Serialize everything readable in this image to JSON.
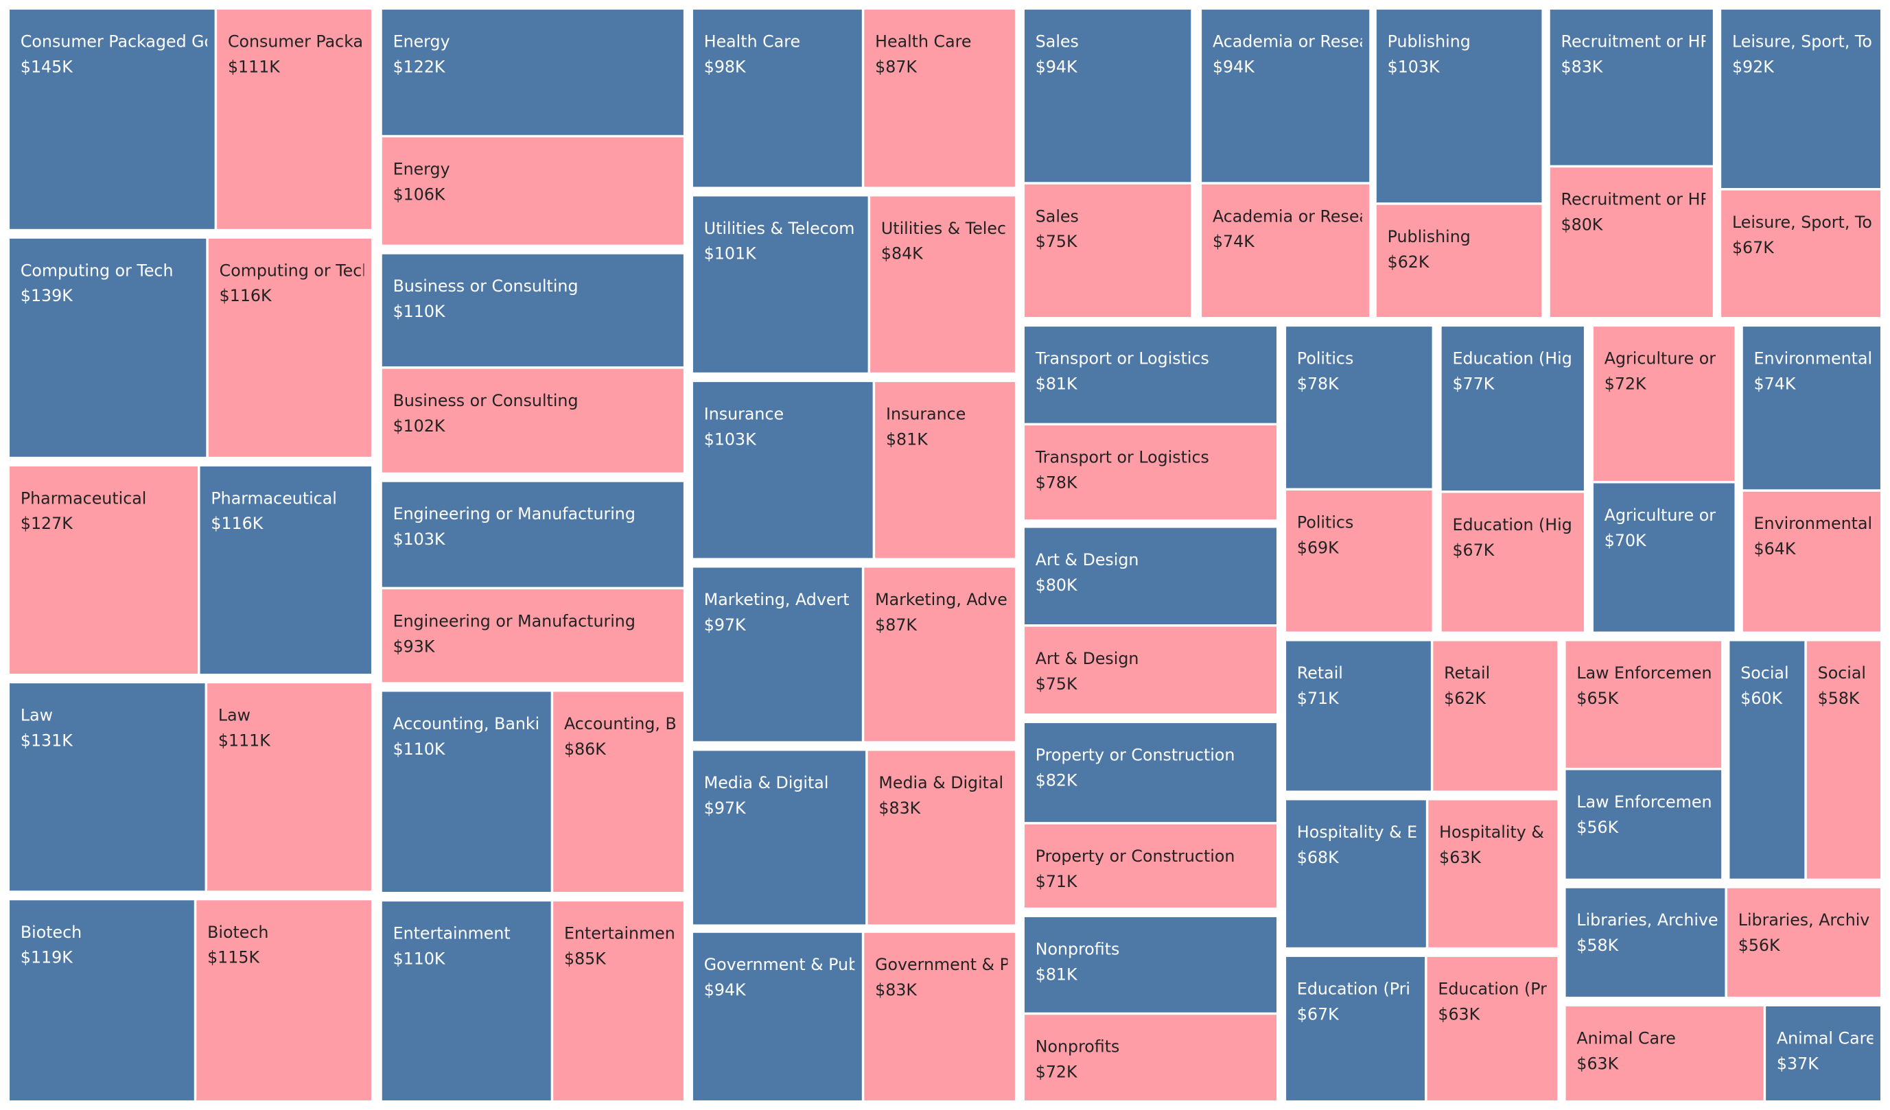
{
  "chart_data": {
    "type": "treemap",
    "colors": {
      "blue": "#4e79a7",
      "pink": "#ff9da7"
    },
    "tiles": [
      {
        "label": "Consumer Packaged Go",
        "value": "$145K",
        "color": "blue"
      },
      {
        "label": "Consumer Packa",
        "value": "$111K",
        "color": "pink"
      },
      {
        "label": "Computing or Tech",
        "value": "$139K",
        "color": "blue"
      },
      {
        "label": "Computing or Tech",
        "value": "$116K",
        "color": "pink"
      },
      {
        "label": "Pharmaceutical",
        "value": "$127K",
        "color": "pink"
      },
      {
        "label": "Pharmaceutical",
        "value": "$116K",
        "color": "blue"
      },
      {
        "label": "Law",
        "value": "$131K",
        "color": "blue"
      },
      {
        "label": "Law",
        "value": "$111K",
        "color": "pink"
      },
      {
        "label": "Biotech",
        "value": "$119K",
        "color": "blue"
      },
      {
        "label": "Biotech",
        "value": "$115K",
        "color": "pink"
      },
      {
        "label": "Energy",
        "value": "$122K",
        "color": "blue"
      },
      {
        "label": "Energy",
        "value": "$106K",
        "color": "pink"
      },
      {
        "label": "Business or Consulting",
        "value": "$110K",
        "color": "blue"
      },
      {
        "label": "Business or Consulting",
        "value": "$102K",
        "color": "pink"
      },
      {
        "label": "Engineering or Manufacturing",
        "value": "$103K",
        "color": "blue"
      },
      {
        "label": "Engineering or Manufacturing",
        "value": "$93K",
        "color": "pink"
      },
      {
        "label": "Accounting, Banki",
        "value": "$110K",
        "color": "blue"
      },
      {
        "label": "Accounting, B",
        "value": "$86K",
        "color": "pink"
      },
      {
        "label": "Entertainment",
        "value": "$110K",
        "color": "blue"
      },
      {
        "label": "Entertainmen",
        "value": "$85K",
        "color": "pink"
      },
      {
        "label": "Health Care",
        "value": "$98K",
        "color": "blue"
      },
      {
        "label": "Health Care",
        "value": "$87K",
        "color": "pink"
      },
      {
        "label": "Utilities & Telecom",
        "value": "$101K",
        "color": "blue"
      },
      {
        "label": "Utilities & Telec",
        "value": "$84K",
        "color": "pink"
      },
      {
        "label": "Insurance",
        "value": "$103K",
        "color": "blue"
      },
      {
        "label": "Insurance",
        "value": "$81K",
        "color": "pink"
      },
      {
        "label": "Marketing, Advert",
        "value": "$97K",
        "color": "blue"
      },
      {
        "label": "Marketing, Adve",
        "value": "$87K",
        "color": "pink"
      },
      {
        "label": "Media & Digital",
        "value": "$97K",
        "color": "blue"
      },
      {
        "label": "Media & Digital",
        "value": "$83K",
        "color": "pink"
      },
      {
        "label": "Government & Publ",
        "value": "$94K",
        "color": "blue"
      },
      {
        "label": "Government & P",
        "value": "$83K",
        "color": "pink"
      },
      {
        "label": "Sales",
        "value": "$94K",
        "color": "blue"
      },
      {
        "label": "Sales",
        "value": "$75K",
        "color": "pink"
      },
      {
        "label": "Academia or Resea",
        "value": "$94K",
        "color": "blue"
      },
      {
        "label": "Academia or Resea",
        "value": "$74K",
        "color": "pink"
      },
      {
        "label": "Publishing",
        "value": "$103K",
        "color": "blue"
      },
      {
        "label": "Publishing",
        "value": "$62K",
        "color": "pink"
      },
      {
        "label": "Recruitment or HR",
        "value": "$83K",
        "color": "blue"
      },
      {
        "label": "Recruitment or HR",
        "value": "$80K",
        "color": "pink"
      },
      {
        "label": "Leisure, Sport, To",
        "value": "$92K",
        "color": "blue"
      },
      {
        "label": "Leisure, Sport, To",
        "value": "$67K",
        "color": "pink"
      },
      {
        "label": "Transport or Logistics",
        "value": "$81K",
        "color": "blue"
      },
      {
        "label": "Transport or Logistics",
        "value": "$78K",
        "color": "pink"
      },
      {
        "label": "Art & Design",
        "value": "$80K",
        "color": "blue"
      },
      {
        "label": "Art & Design",
        "value": "$75K",
        "color": "pink"
      },
      {
        "label": "Property or Construction",
        "value": "$82K",
        "color": "blue"
      },
      {
        "label": "Property or Construction",
        "value": "$71K",
        "color": "pink"
      },
      {
        "label": "Nonprofits",
        "value": "$81K",
        "color": "blue"
      },
      {
        "label": "Nonprofits",
        "value": "$72K",
        "color": "pink"
      },
      {
        "label": "Politics",
        "value": "$78K",
        "color": "blue"
      },
      {
        "label": "Politics",
        "value": "$69K",
        "color": "pink"
      },
      {
        "label": "Education (Hig",
        "value": "$77K",
        "color": "blue"
      },
      {
        "label": "Education (Hig",
        "value": "$67K",
        "color": "pink"
      },
      {
        "label": "Agriculture or",
        "value": "$72K",
        "color": "pink"
      },
      {
        "label": "Agriculture or",
        "value": "$70K",
        "color": "blue"
      },
      {
        "label": "Environmental",
        "value": "$74K",
        "color": "blue"
      },
      {
        "label": "Environmental",
        "value": "$64K",
        "color": "pink"
      },
      {
        "label": "Retail",
        "value": "$71K",
        "color": "blue"
      },
      {
        "label": "Retail",
        "value": "$62K",
        "color": "pink"
      },
      {
        "label": "Hospitality & E",
        "value": "$68K",
        "color": "blue"
      },
      {
        "label": "Hospitality &",
        "value": "$63K",
        "color": "pink"
      },
      {
        "label": "Education (Pri",
        "value": "$67K",
        "color": "blue"
      },
      {
        "label": "Education (Pr",
        "value": "$63K",
        "color": "pink"
      },
      {
        "label": "Law Enforcemen",
        "value": "$65K",
        "color": "pink"
      },
      {
        "label": "Law Enforcemen",
        "value": "$56K",
        "color": "blue"
      },
      {
        "label": "Social",
        "value": "$60K",
        "color": "blue"
      },
      {
        "label": "Social",
        "value": "$58K",
        "color": "pink"
      },
      {
        "label": "Libraries, Archive",
        "value": "$58K",
        "color": "blue"
      },
      {
        "label": "Libraries, Archiv",
        "value": "$56K",
        "color": "pink"
      },
      {
        "label": "Animal Care",
        "value": "$63K",
        "color": "pink"
      },
      {
        "label": "Animal Care",
        "value": "$37K",
        "color": "blue"
      }
    ]
  }
}
